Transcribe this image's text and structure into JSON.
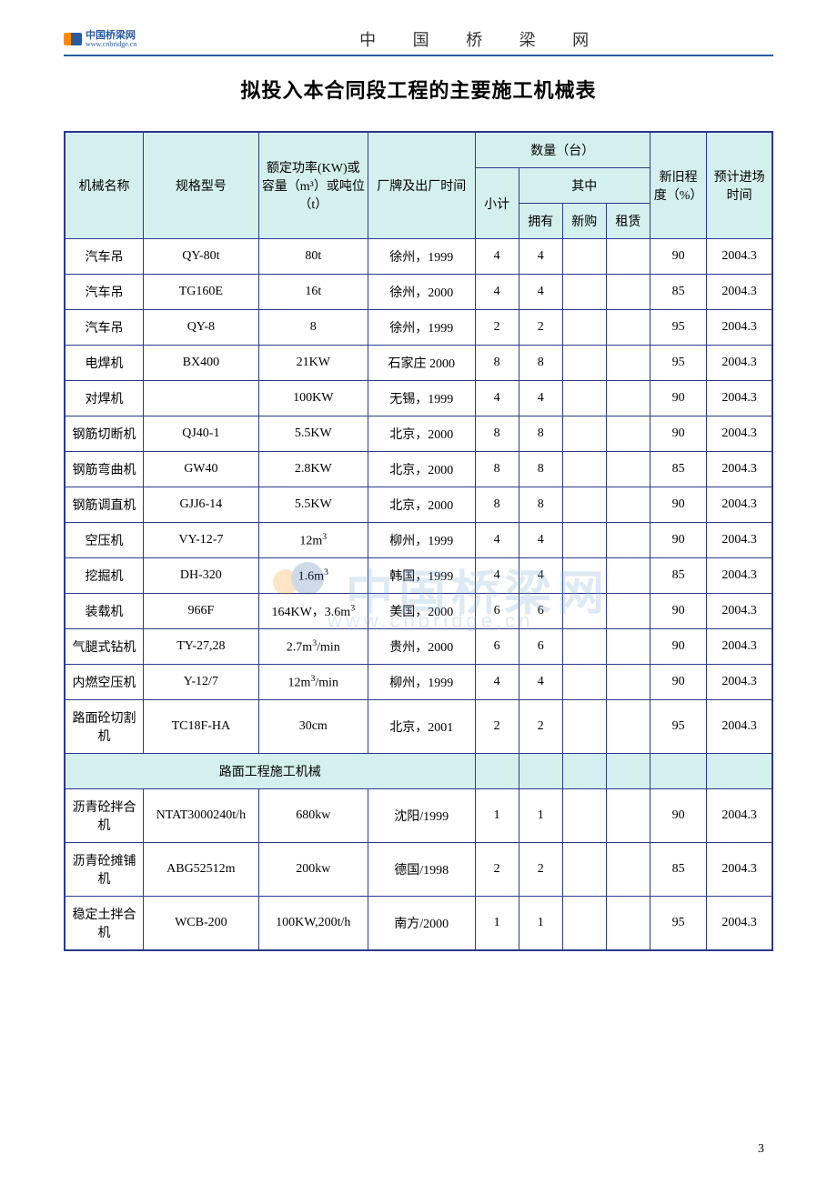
{
  "header": {
    "logo_cn": "中国桥梁网",
    "logo_url": "www.cnbridge.cn",
    "site_title": "中 国 桥 梁 网"
  },
  "doc_title": "拟投入本合同段工程的主要施工机械表",
  "table": {
    "border_color": "#2a3a8a",
    "header_bg": "#d4f0ee",
    "columns": {
      "name": "机械名称",
      "model": "规格型号",
      "power": "额定功率(KW)或容量（m³）或吨位（t）",
      "factory": "厂牌及出厂时间",
      "qty_group": "数量（台）",
      "subtotal": "小计",
      "of_which": "其中",
      "own": "拥有",
      "newbuy": "新购",
      "rent": "租赁",
      "condition": "新旧程度（%）",
      "arrive": "预计进场时间"
    },
    "rows": [
      {
        "name": "汽车吊",
        "model": "QY-80t",
        "power": "80t",
        "factory": "徐州，1999",
        "sub": "4",
        "own": "4",
        "new": "",
        "rent": "",
        "cond": "90",
        "time": "2004.3"
      },
      {
        "name": "汽车吊",
        "model": "TG160E",
        "power": "16t",
        "factory": "徐州，2000",
        "sub": "4",
        "own": "4",
        "new": "",
        "rent": "",
        "cond": "85",
        "time": "2004.3"
      },
      {
        "name": "汽车吊",
        "model": "QY-8",
        "power": "8",
        "factory": "徐州，1999",
        "sub": "2",
        "own": "2",
        "new": "",
        "rent": "",
        "cond": "95",
        "time": "2004.3"
      },
      {
        "name": "电焊机",
        "model": "BX400",
        "power": "21KW",
        "factory": "石家庄 2000",
        "sub": "8",
        "own": "8",
        "new": "",
        "rent": "",
        "cond": "95",
        "time": "2004.3"
      },
      {
        "name": "对焊机",
        "model": "",
        "power": "100KW",
        "factory": "无锡，1999",
        "sub": "4",
        "own": "4",
        "new": "",
        "rent": "",
        "cond": "90",
        "time": "2004.3"
      },
      {
        "name": "钢筋切断机",
        "model": "QJ40-1",
        "power": "5.5KW",
        "factory": "北京，2000",
        "sub": "8",
        "own": "8",
        "new": "",
        "rent": "",
        "cond": "90",
        "time": "2004.3"
      },
      {
        "name": "钢筋弯曲机",
        "model": "GW40",
        "power": "2.8KW",
        "factory": "北京，2000",
        "sub": "8",
        "own": "8",
        "new": "",
        "rent": "",
        "cond": "85",
        "time": "2004.3"
      },
      {
        "name": "钢筋调直机",
        "model": "GJJ6-14",
        "power": "5.5KW",
        "factory": "北京，2000",
        "sub": "8",
        "own": "8",
        "new": "",
        "rent": "",
        "cond": "90",
        "time": "2004.3"
      },
      {
        "name": "空压机",
        "model": "VY-12-7",
        "power": "12m³",
        "factory": "柳州，1999",
        "sub": "4",
        "own": "4",
        "new": "",
        "rent": "",
        "cond": "90",
        "time": "2004.3"
      },
      {
        "name": "挖掘机",
        "model": "DH-320",
        "power": "1.6m³",
        "factory": "韩国，1999",
        "sub": "4",
        "own": "4",
        "new": "",
        "rent": "",
        "cond": "85",
        "time": "2004.3"
      },
      {
        "name": "装载机",
        "model": "966F",
        "power": "164KW，3.6m3",
        "factory": "美国，2000",
        "sub": "6",
        "own": "6",
        "new": "",
        "rent": "",
        "cond": "90",
        "time": "2004.3"
      },
      {
        "name": "气腿式钻机",
        "model": "TY-27,28",
        "power": "2.7m³/min",
        "factory": "贵州，2000",
        "sub": "6",
        "own": "6",
        "new": "",
        "rent": "",
        "cond": "90",
        "time": "2004.3"
      },
      {
        "name": "内燃空压机",
        "model": "Y-12/7",
        "power": "12m³/min",
        "factory": "柳州，1999",
        "sub": "4",
        "own": "4",
        "new": "",
        "rent": "",
        "cond": "90",
        "time": "2004.3"
      },
      {
        "name": "路面砼切割机",
        "model": "TC18F-HA",
        "power": "30cm",
        "factory": "北京，2001",
        "sub": "2",
        "own": "2",
        "new": "",
        "rent": "",
        "cond": "95",
        "time": "2004.3"
      }
    ],
    "section_header": "路面工程施工机械",
    "rows2": [
      {
        "name": "沥青砼拌合机",
        "model": "NTAT3000240t/h",
        "power": "680kw",
        "factory": "沈阳/1999",
        "sub": "1",
        "own": "1",
        "new": "",
        "rent": "",
        "cond": "90",
        "time": "2004.3"
      },
      {
        "name": "沥青砼摊铺机",
        "model": "ABG52512m",
        "power": "200kw",
        "factory": "德国/1998",
        "sub": "2",
        "own": "2",
        "new": "",
        "rent": "",
        "cond": "85",
        "time": "2004.3"
      },
      {
        "name": "稳定土拌合机",
        "model": "WCB-200",
        "power": "100KW,200t/h",
        "factory": "南方/2000",
        "sub": "1",
        "own": "1",
        "new": "",
        "rent": "",
        "cond": "95",
        "time": "2004.3"
      }
    ]
  },
  "watermark": {
    "text": "中国桥梁网",
    "url": "www.cnbridge.cn"
  },
  "page_number": "3"
}
